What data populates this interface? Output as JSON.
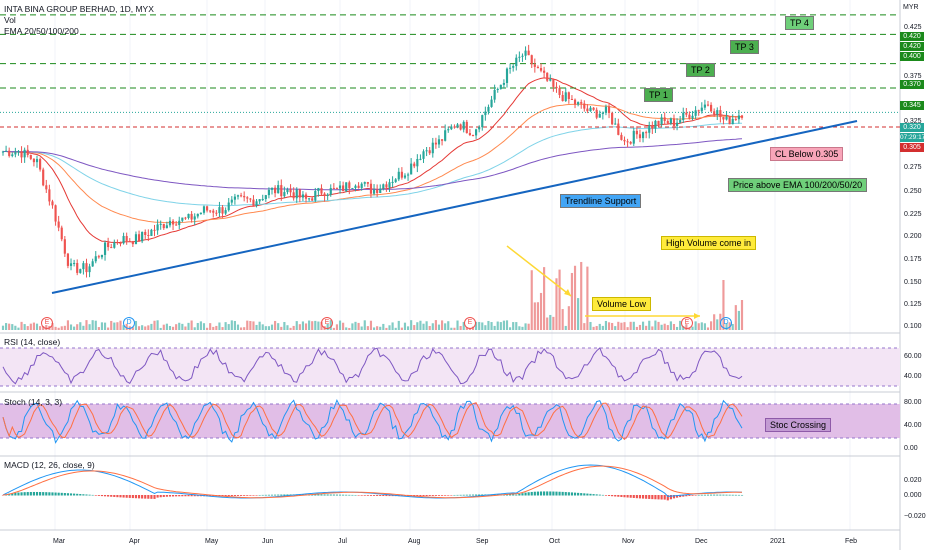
{
  "header": {
    "title": "INTA BINA GROUP BERHAD, 1D, MYX",
    "vol_label": "Vol",
    "ema_label": "EMA 20/50/100/200"
  },
  "currency": "MYR",
  "price_axis": {
    "ticks": [
      "0.425",
      "0.375",
      "0.325",
      "0.275",
      "0.250",
      "0.225",
      "0.200",
      "0.175",
      "0.150",
      "0.125",
      "0.100"
    ],
    "tags": {
      "tp4": "0.420",
      "tp3": "0.400",
      "tp2": "0.370",
      "tp1": "0.345",
      "last": "0.320",
      "timer": "07:29:17",
      "stop": "0.305"
    }
  },
  "annotations": {
    "tp1": "TP 1",
    "tp2": "TP 2",
    "tp3": "TP 3",
    "tp4": "TP 4",
    "cl": "CL Below 0.305",
    "ema_note": "Price above EMA 100/200/50/20",
    "trendline": "Trendline Support",
    "high_vol": "High Volume come in",
    "vol_low": "Volume Low",
    "stoc_cross": "Stoc Crossing"
  },
  "events": {
    "e": "E",
    "d": "D"
  },
  "indicators": {
    "rsi": {
      "title": "RSI (14, close)",
      "ticks": [
        "60.00",
        "40.00"
      ]
    },
    "stoch": {
      "title": "Stoch (14, 3, 3)",
      "ticks": [
        "80.00",
        "40.00",
        "0.00"
      ]
    },
    "macd": {
      "title": "MACD (12, 26, close, 9)",
      "ticks": [
        "0.020",
        "0.000",
        "−0.020"
      ]
    }
  },
  "time_axis": [
    "Mar",
    "Apr",
    "May",
    "Jun",
    "Jul",
    "Aug",
    "Sep",
    "Oct",
    "Nov",
    "Dec",
    "2021",
    "Feb"
  ],
  "colors": {
    "up": "#26a69a",
    "down": "#ef5350",
    "trend": "#1565c0",
    "ema20": "#e53935",
    "ema50": "#ff8a50",
    "ema100": "#7fd3e8",
    "ema200": "#7e57c2",
    "target": "#1b8a1b",
    "stop": "#d32f2f"
  },
  "chart_data": {
    "type": "candlestick",
    "title": "INTA BINA GROUP BERHAD, 1D, MYX",
    "currency": "MYR",
    "weekly_close": [
      0.28,
      0.28,
      0.27,
      0.22,
      0.16,
      0.16,
      0.18,
      0.19,
      0.19,
      0.2,
      0.21,
      0.21,
      0.22,
      0.22,
      0.23,
      0.23,
      0.24,
      0.24,
      0.23,
      0.24,
      0.24,
      0.25,
      0.24,
      0.25,
      0.26,
      0.28,
      0.29,
      0.31,
      0.3,
      0.33,
      0.36,
      0.38,
      0.36,
      0.34,
      0.33,
      0.32,
      0.32,
      0.29,
      0.3,
      0.31,
      0.31,
      0.32,
      0.33,
      0.31,
      0.32
    ],
    "levels": {
      "tp1": 0.345,
      "tp2": 0.37,
      "tp3": 0.4,
      "tp4": 0.42,
      "stop_loss": 0.305,
      "last": 0.32
    },
    "ylim": [
      0.09,
      0.43
    ]
  }
}
